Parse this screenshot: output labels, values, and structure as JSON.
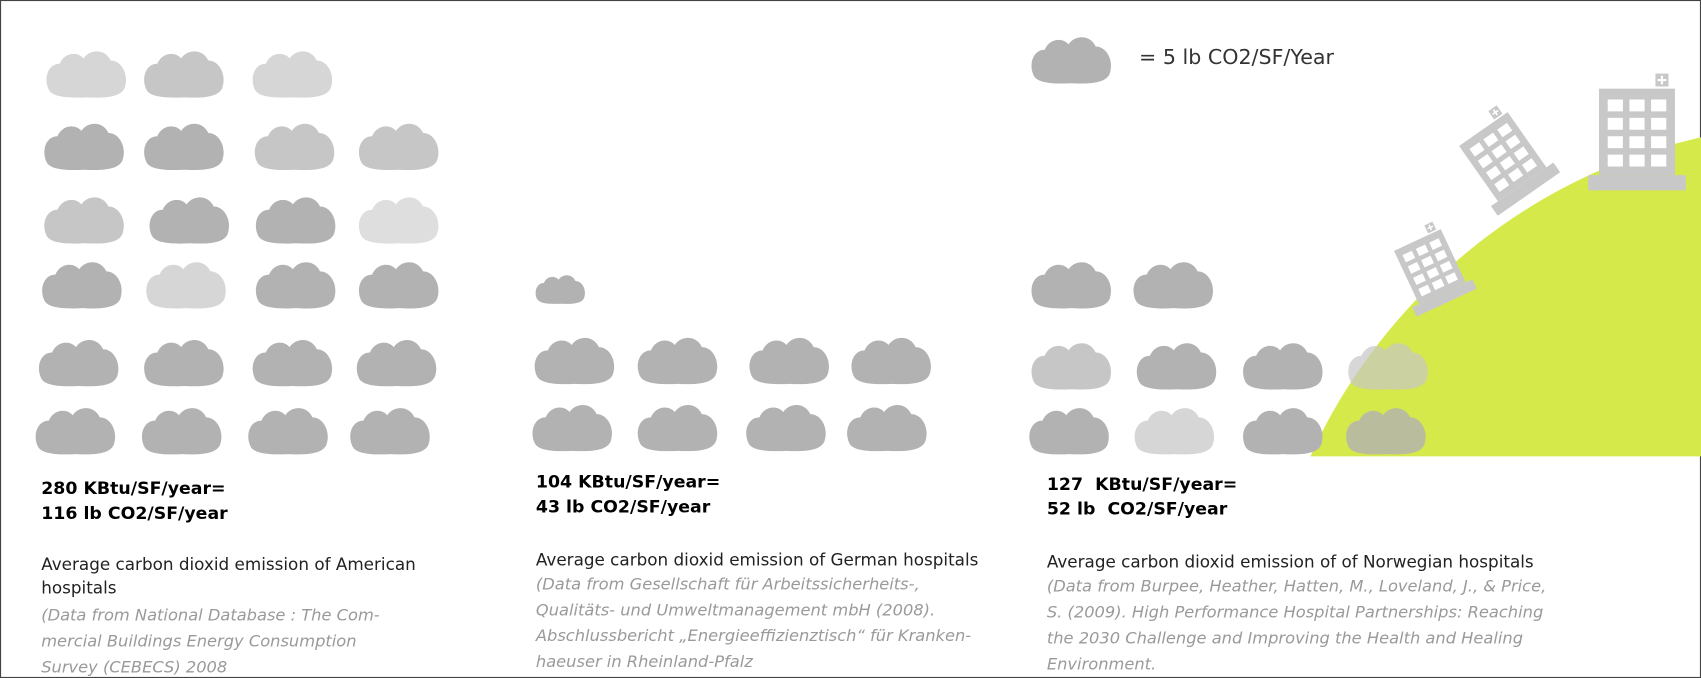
{
  "legend": {
    "text": "= 5 lb CO2/SF/Year"
  },
  "panels": [
    {
      "heading": [
        "280 KBtu/SF/year=",
        "116 lb CO2/SF/year"
      ],
      "description": [
        "Average carbon dioxid emission of American",
        "hospitals"
      ],
      "source": [
        "(Data from National Database : The Com-",
        "mercial Buildings Energy Consumption",
        "Survey (CEBECS) 2008"
      ]
    },
    {
      "heading": [
        "104 KBtu/SF/year=",
        "43 lb CO2/SF/year"
      ],
      "description": [
        "Average carbon dioxid emission of German hospitals"
      ],
      "source": [
        "(Data from Gesellschaft für Arbeitssicherheits-,",
        "Qualitäts- und Umweltmanagement mbH (2008).",
        "Abschlussbericht „Energieeffizienztisch“ für Kranken-",
        "haeuser in Rheinland-Pfalz"
      ]
    },
    {
      "heading": [
        "127  KBtu/SF/year=",
        "52 lb  CO2/SF/year"
      ],
      "description": [
        "Average carbon dioxid emission of of Norwegian hospitals"
      ],
      "source": [
        "(Data from Burpee, Heather, Hatten, M., Loveland, J., & Price,",
        "S. (2009). High Performance Hospital Partnerships: Reaching",
        "the 2030 Challenge and Improving the Health and Healing",
        "Environment."
      ]
    }
  ]
}
